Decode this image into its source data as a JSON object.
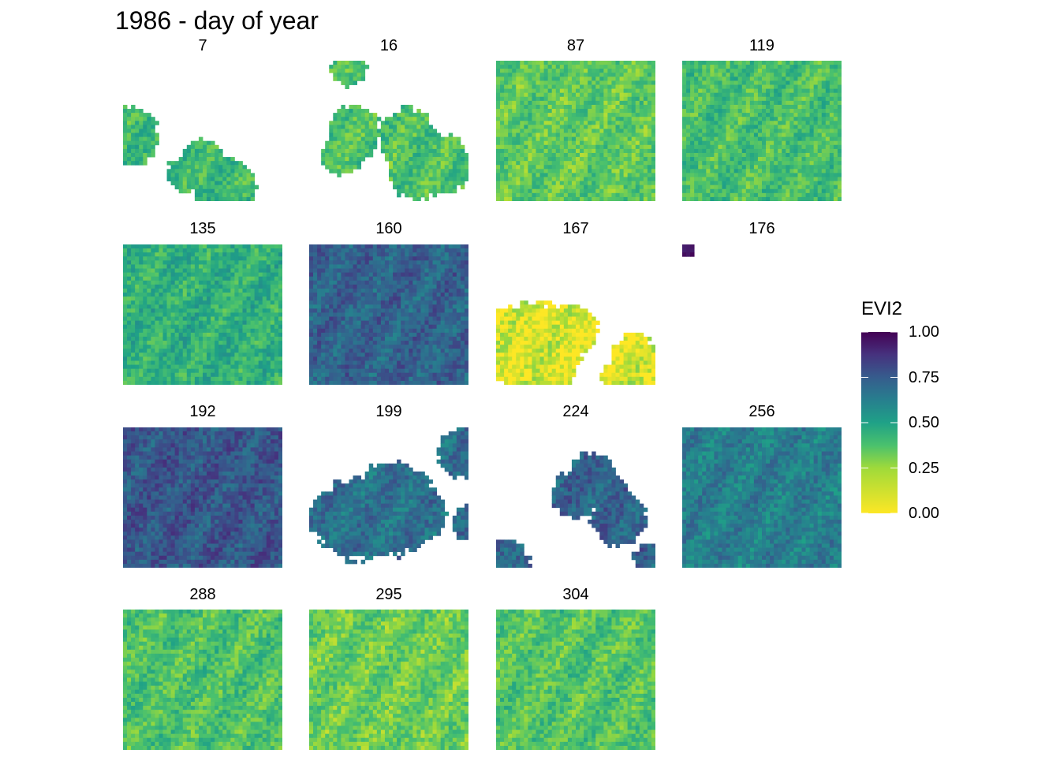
{
  "chart_data": {
    "type": "heatmap",
    "title": "1986 - day of year",
    "panels": [
      {
        "label": "7",
        "fill_mean": 0.28,
        "coverage": 0.3
      },
      {
        "label": "16",
        "fill_mean": 0.25,
        "coverage": 0.12
      },
      {
        "label": "87",
        "fill_mean": 0.22,
        "coverage": 1.0
      },
      {
        "label": "119",
        "fill_mean": 0.26,
        "coverage": 1.0
      },
      {
        "label": "135",
        "fill_mean": 0.32,
        "coverage": 1.0
      },
      {
        "label": "160",
        "fill_mean": 0.6,
        "coverage": 1.0
      },
      {
        "label": "167",
        "fill_mean": 0.05,
        "coverage": 0.7
      },
      {
        "label": "176",
        "fill_mean": 0.85,
        "coverage": 0.01
      },
      {
        "label": "192",
        "fill_mean": 0.64,
        "coverage": 1.0
      },
      {
        "label": "199",
        "fill_mean": 0.55,
        "coverage": 0.45
      },
      {
        "label": "224",
        "fill_mean": 0.6,
        "coverage": 0.15
      },
      {
        "label": "256",
        "fill_mean": 0.5,
        "coverage": 1.0
      },
      {
        "label": "288",
        "fill_mean": 0.25,
        "coverage": 1.0
      },
      {
        "label": "295",
        "fill_mean": 0.2,
        "coverage": 1.0
      },
      {
        "label": "304",
        "fill_mean": 0.24,
        "coverage": 1.0
      }
    ],
    "legend": {
      "title": "EVI2",
      "ticks": [
        "1.00",
        "0.75",
        "0.50",
        "0.25",
        "0.00"
      ],
      "tick_values": [
        1.0,
        0.75,
        0.5,
        0.25,
        0.0
      ],
      "range": [
        0,
        1
      ],
      "colorscale": "viridis (reversed)",
      "placement": "right"
    },
    "colors": {
      "high": "#440154",
      "mid_high": "#31688e",
      "mid": "#21918c",
      "mid_low": "#35b779",
      "low": "#fde725"
    }
  }
}
